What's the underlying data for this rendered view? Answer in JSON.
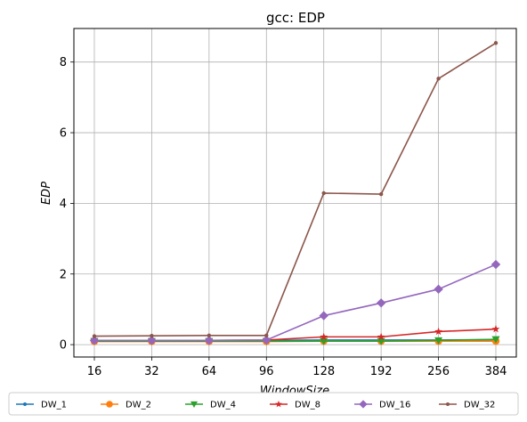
{
  "chart_data": {
    "type": "line",
    "title": "gcc: EDP",
    "xlabel": "WindowSize",
    "ylabel": "EDP",
    "categories": [
      "16",
      "32",
      "64",
      "96",
      "128",
      "192",
      "256",
      "384"
    ],
    "ylim": [
      -0.35,
      8.95
    ],
    "yticks": [
      0,
      2,
      4,
      6,
      8
    ],
    "grid": true,
    "legend_position": "bottom",
    "series": [
      {
        "name": "DW_1",
        "color": "#1f77b4",
        "marker": "point",
        "values": [
          0.12,
          0.12,
          0.12,
          0.12,
          0.13,
          0.13,
          0.13,
          0.14
        ]
      },
      {
        "name": "DW_2",
        "color": "#ff7f0e",
        "marker": "circle",
        "values": [
          0.09,
          0.09,
          0.09,
          0.09,
          0.1,
          0.1,
          0.1,
          0.1
        ]
      },
      {
        "name": "DW_4",
        "color": "#2ca02c",
        "marker": "triangle",
        "values": [
          0.1,
          0.1,
          0.1,
          0.1,
          0.1,
          0.1,
          0.12,
          0.15
        ]
      },
      {
        "name": "DW_8",
        "color": "#d62728",
        "marker": "star",
        "values": [
          0.12,
          0.12,
          0.12,
          0.13,
          0.22,
          0.22,
          0.37,
          0.44
        ]
      },
      {
        "name": "DW_16",
        "color": "#9467bd",
        "marker": "diamond",
        "values": [
          0.12,
          0.12,
          0.12,
          0.13,
          0.82,
          1.18,
          1.57,
          2.27
        ]
      },
      {
        "name": "DW_32",
        "color": "#8c564b",
        "marker": "point",
        "values": [
          0.24,
          0.25,
          0.26,
          0.26,
          4.29,
          4.26,
          7.53,
          8.54
        ]
      }
    ]
  }
}
